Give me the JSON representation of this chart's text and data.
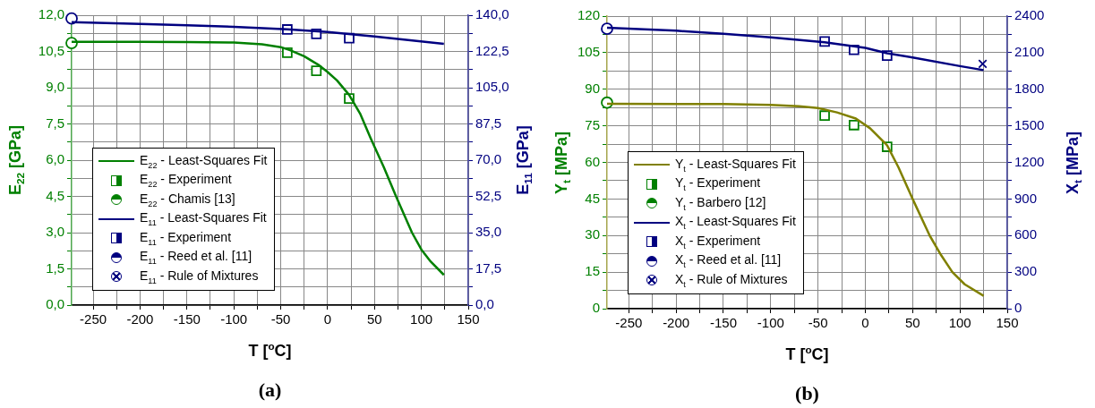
{
  "chart_data": [
    {
      "type": "line",
      "title": "(a)",
      "xlabel": "T [$^{o}$C]",
      "ylabel": "E$_{22}$ [GPa]",
      "y2label": "E$_{11}$ [GPa]",
      "xlim": [
        -273,
        150
      ],
      "xticks": [
        -250,
        {
          "value": -225,
          "label": null
        },
        -200,
        {
          "value": -175,
          "label": null
        },
        -150,
        {
          "value": -125,
          "label": null
        },
        -100,
        {
          "value": -75,
          "label": null
        },
        -50,
        {
          "value": -25,
          "label": null
        },
        0,
        {
          "value": 25,
          "label": null
        },
        50,
        {
          "value": 75,
          "label": null
        },
        100,
        {
          "value": 125,
          "label": null
        },
        150
      ],
      "ylim": [
        0,
        12
      ],
      "yticks": [
        {
          "value": 0,
          "label": "0,0"
        },
        {
          "value": 0.75,
          "label": null
        },
        {
          "value": 1.5,
          "label": "1,5"
        },
        {
          "value": 2.25,
          "label": null
        },
        {
          "value": 3,
          "label": "3,0"
        },
        {
          "value": 3.75,
          "label": null
        },
        {
          "value": 4.5,
          "label": "4,5"
        },
        {
          "value": 5.25,
          "label": null
        },
        {
          "value": 6,
          "label": "6,0"
        },
        {
          "value": 6.75,
          "label": null
        },
        {
          "value": 7.5,
          "label": "7,5"
        },
        {
          "value": 8.25,
          "label": null
        },
        {
          "value": 9,
          "label": "9,0"
        },
        {
          "value": 9.75,
          "label": null
        },
        {
          "value": 10.5,
          "label": "10,5"
        },
        {
          "value": 11.25,
          "label": null
        },
        {
          "value": 12,
          "label": "12,0"
        }
      ],
      "y2lim": [
        0,
        140
      ],
      "y2ticks": [
        {
          "value": 0,
          "label": "0,0"
        },
        {
          "value": 8.75,
          "label": null
        },
        {
          "value": 17.5,
          "label": "17,5"
        },
        {
          "value": 26.25,
          "label": null
        },
        {
          "value": 35,
          "label": "35,0"
        },
        {
          "value": 43.75,
          "label": null
        },
        {
          "value": 52.5,
          "label": "52,5"
        },
        {
          "value": 61.25,
          "label": null
        },
        {
          "value": 70,
          "label": "70,0"
        },
        {
          "value": 78.75,
          "label": null
        },
        {
          "value": 87.5,
          "label": "87,5"
        },
        {
          "value": 96.25,
          "label": null
        },
        {
          "value": 105,
          "label": "105,0"
        },
        {
          "value": 113.75,
          "label": null
        },
        {
          "value": 122.5,
          "label": "122,5"
        },
        {
          "value": 131.25,
          "label": null
        },
        {
          "value": 140,
          "label": "140,0"
        }
      ],
      "grid": true,
      "legend": "bottom left",
      "series": [
        {
          "name": "E$_{22}$ - Least-Squares Fit",
          "type": "line",
          "marker": "none",
          "color": "#008000",
          "x": [
            -273,
            -200,
            -150,
            -100,
            -70,
            -50,
            -40,
            -25,
            -10,
            0,
            10,
            23,
            35,
            46,
            60,
            73,
            90,
            100,
            110,
            124
          ],
          "values": [
            10.9,
            10.9,
            10.89,
            10.87,
            10.8,
            10.68,
            10.55,
            10.3,
            9.95,
            9.65,
            9.3,
            8.7,
            7.9,
            6.9,
            5.7,
            4.5,
            3.0,
            2.3,
            1.8,
            1.25
          ]
        },
        {
          "name": "E$_{22}$ - Experiment",
          "type": "scatter",
          "marker": "square",
          "color": "#008000",
          "x": [
            -43,
            -12,
            23
          ],
          "values": [
            10.45,
            9.7,
            8.55
          ]
        },
        {
          "name": "E$_{22}$ - Chamis [13]",
          "type": "scatter",
          "marker": "circle",
          "color": "#008000",
          "x": [
            -273
          ],
          "values": [
            10.85
          ]
        },
        {
          "name": "E$_{11}$ - Least-Squares Fit",
          "type": "line",
          "marker": "none",
          "axis": "y2",
          "color": "#000080",
          "x": [
            -273,
            -200,
            -150,
            -100,
            -43,
            0,
            50,
            124
          ],
          "values": [
            136.6,
            135.8,
            135.1,
            134.4,
            133.2,
            131.9,
            129.7,
            126.2
          ]
        },
        {
          "name": "E$_{11}$ - Experiment",
          "type": "scatter",
          "marker": "square",
          "axis": "y2",
          "color": "#000080",
          "x": [
            -43,
            -12,
            23
          ],
          "values": [
            133.1,
            131,
            128.9
          ]
        },
        {
          "name": "E$_{11}$ - Reed et al. [11]",
          "type": "scatter",
          "marker": "circle",
          "axis": "y2",
          "color": "#000080",
          "x": [
            -273
          ],
          "values": [
            138.4
          ]
        },
        {
          "name": "E$_{11}$ - Rule of Mixtures",
          "type": "scatter",
          "marker": "cross",
          "axis": "y2",
          "color": "#000080"
        }
      ]
    },
    {
      "type": "line",
      "title": "(b)",
      "xlabel": "T [$^{o}$C]",
      "ylabel": "Y$_{t}$ [MPa]",
      "y2label": "X$_{t}$ [MPa]",
      "xlim": [
        -273,
        150
      ],
      "xticks": [
        -250,
        {
          "value": -225,
          "label": null
        },
        -200,
        {
          "value": -175,
          "label": null
        },
        -150,
        {
          "value": -125,
          "label": null
        },
        -100,
        {
          "value": -75,
          "label": null
        },
        -50,
        {
          "value": -25,
          "label": null
        },
        0,
        {
          "value": 25,
          "label": null
        },
        50,
        {
          "value": 75,
          "label": null
        },
        100,
        {
          "value": 125,
          "label": null
        },
        150
      ],
      "ylim": [
        0,
        120
      ],
      "yticks": [
        0,
        {
          "value": 7.5,
          "label": null
        },
        15,
        {
          "value": 22.5,
          "label": null
        },
        30,
        {
          "value": 37.5,
          "label": null
        },
        45,
        {
          "value": 52.5,
          "label": null
        },
        60,
        {
          "value": 67.5,
          "label": null
        },
        75,
        {
          "value": 82.5,
          "label": null
        },
        90,
        {
          "value": 97.5,
          "label": null
        },
        105,
        {
          "value": 112.5,
          "label": null
        },
        120
      ],
      "y2lim": [
        0,
        2400
      ],
      "y2ticks": [
        0,
        {
          "value": 150,
          "label": null
        },
        300,
        {
          "value": 450,
          "label": null
        },
        600,
        {
          "value": 750,
          "label": null
        },
        900,
        {
          "value": 1050,
          "label": null
        },
        1200,
        {
          "value": 1350,
          "label": null
        },
        1500,
        {
          "value": 1650,
          "label": null
        },
        1800,
        {
          "value": 1950,
          "label": null
        },
        2100,
        {
          "value": 2250,
          "label": null
        },
        2400
      ],
      "grid": true,
      "legend": "bottom left",
      "series": [
        {
          "name": "Y$_{t}$ - Least-Squares Fit",
          "type": "line",
          "marker": "none",
          "color": "#808000",
          "x": [
            -273,
            -150,
            -100,
            -70,
            -50,
            -30,
            -10,
            5,
            23,
            35,
            50,
            68,
            80,
            92,
            105,
            125
          ],
          "values": [
            84,
            83.9,
            83.6,
            83,
            82.3,
            80.5,
            78,
            74,
            67,
            58,
            45,
            30,
            22,
            15,
            10,
            5.3
          ]
        },
        {
          "name": "Y$_{t}$ - Experiment",
          "type": "scatter",
          "marker": "square",
          "color": "#008000",
          "x": [
            -43,
            -12,
            23
          ],
          "values": [
            79.2,
            75.3,
            66.4
          ]
        },
        {
          "name": "Y$_{t}$ - Barbero [12]",
          "type": "scatter",
          "marker": "circle",
          "color": "#008000",
          "x": [
            -273
          ],
          "values": [
            84.5
          ]
        },
        {
          "name": "X$_{t}$ - Least-Squares Fit",
          "type": "line",
          "marker": "none",
          "axis": "y2",
          "color": "#000080",
          "x": [
            -273,
            -200,
            -150,
            -100,
            -43,
            0,
            23,
            50,
            100,
            125
          ],
          "values": [
            2305,
            2280,
            2255,
            2225,
            2185,
            2140,
            2095,
            2060,
            1990,
            1957
          ]
        },
        {
          "name": "X$_{t}$ - Experiment",
          "type": "scatter",
          "marker": "square",
          "axis": "y2",
          "color": "#000080",
          "x": [
            -43,
            -12,
            23
          ],
          "values": [
            2192,
            2123,
            2076
          ]
        },
        {
          "name": "X$_{t}$ - Reed et al. [11]",
          "type": "scatter",
          "marker": "circle",
          "axis": "y2",
          "color": "#000080",
          "x": [
            -273
          ],
          "values": [
            2296
          ]
        },
        {
          "name": "X$_{t}$ - Rule of Mixtures",
          "type": "scatter",
          "marker": "cross",
          "axis": "y2",
          "color": "#000080",
          "x": [
            124
          ],
          "values": [
            2008
          ]
        }
      ]
    }
  ]
}
